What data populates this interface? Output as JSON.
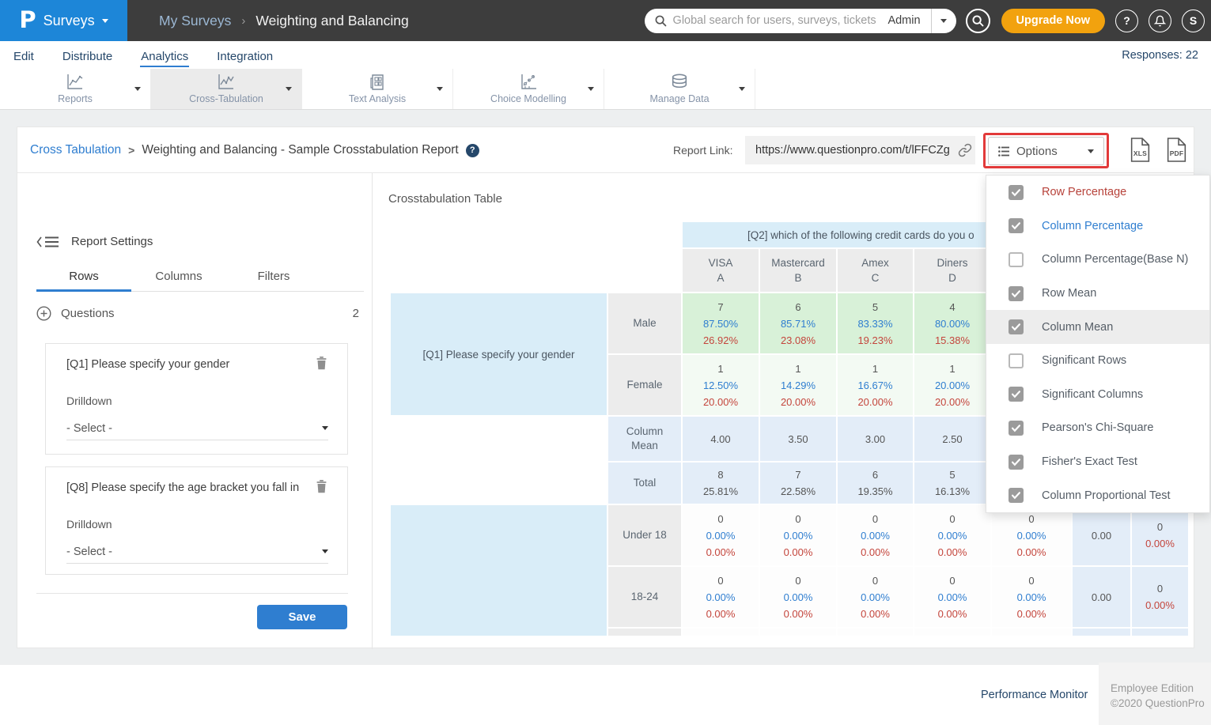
{
  "colors": {
    "topbar": "#3d3d3d",
    "logo_blue": "#1d86d8",
    "accent_blue": "#2f7ed0",
    "accent_orange": "#f2a20e",
    "annotation_red": "#e23a3a",
    "percent_blue": "#2f7ed0",
    "percent_red": "#c4453c",
    "cell_green": "#d8f1d8",
    "cell_blue": "#d9edf8",
    "cell_summary": "#e3edf8"
  },
  "topbar": {
    "logo_letter": "P",
    "product_menu": "Surveys",
    "breadcrumb": {
      "parent": "My Surveys",
      "separator": "›",
      "current": "Weighting and Balancing"
    },
    "search": {
      "placeholder": "Global search for users, surveys, tickets",
      "scope": "Admin"
    },
    "upgrade_label": "Upgrade Now",
    "help_glyph": "?",
    "avatar_letter": "S"
  },
  "nav": {
    "items": [
      "Edit",
      "Distribute",
      "Analytics",
      "Integration"
    ],
    "active_item": "Analytics",
    "responses": "Responses: 22"
  },
  "toolbar": {
    "items": [
      {
        "label": "Reports",
        "icon": "line-chart"
      },
      {
        "label": "Cross-Tabulation",
        "icon": "line-chart",
        "active": true
      },
      {
        "label": "Text Analysis",
        "icon": "document-grid"
      },
      {
        "label": "Choice Modelling",
        "icon": "dotted-chart"
      },
      {
        "label": "Manage Data",
        "icon": "database"
      }
    ]
  },
  "report_header": {
    "breadcrumb_link": "Cross Tabulation",
    "separator": ">",
    "title": "Weighting and Balancing - Sample Crosstabulation Report",
    "help_glyph": "?",
    "report_link_label": "Report Link:",
    "report_url": "https://www.questionpro.com/t/lFFCZg",
    "options_button": "Options",
    "xls_label": "XLS",
    "pdf_label": "PDF"
  },
  "settings": {
    "title": "Report Settings",
    "tabs": [
      "Rows",
      "Columns",
      "Filters"
    ],
    "active_tab": "Rows",
    "questions_label": "Questions",
    "questions_count": "2",
    "cards": [
      {
        "question": "[Q1] Please specify your gender",
        "drilldown": "Drilldown",
        "select": "- Select -"
      },
      {
        "question": "[Q8] Please specify the age bracket you fall in",
        "drilldown": "Drilldown",
        "select": "- Select -"
      }
    ],
    "save_label": "Save"
  },
  "crosstab": {
    "title": "Crosstabulation Table",
    "banner": "[Q2] which of the following credit cards do you o",
    "columns": [
      {
        "brand": "VISA",
        "code": "A"
      },
      {
        "brand": "Mastercard",
        "code": "B"
      },
      {
        "brand": "Amex",
        "code": "C"
      },
      {
        "brand": "Diners",
        "code": "D"
      }
    ],
    "gender_group": {
      "question": "[Q1] Please specify your gender",
      "rows": [
        {
          "label": "Male",
          "style": "green",
          "cells": [
            [
              "7",
              "87.50%",
              "26.92%"
            ],
            [
              "6",
              "85.71%",
              "23.08%"
            ],
            [
              "5",
              "83.33%",
              "19.23%"
            ],
            [
              "4",
              "80.00%",
              "15.38%"
            ]
          ]
        },
        {
          "label": "Female",
          "style": "palegreen",
          "cells": [
            [
              "1",
              "12.50%",
              "20.00%"
            ],
            [
              "1",
              "14.29%",
              "20.00%"
            ],
            [
              "1",
              "16.67%",
              "20.00%"
            ],
            [
              "1",
              "20.00%",
              "20.00%"
            ]
          ]
        }
      ]
    },
    "summary_rows": [
      {
        "label": "Column Mean",
        "cells": [
          "4.00",
          "3.50",
          "3.00",
          "2.50"
        ]
      },
      {
        "label": "Total",
        "cells": [
          [
            "8",
            "25.81%"
          ],
          [
            "7",
            "22.58%"
          ],
          [
            "6",
            "19.35%"
          ],
          [
            "5",
            "16.13%"
          ]
        ]
      }
    ],
    "age_group": {
      "question": "",
      "rows": [
        {
          "label": "Under 18",
          "cells": [
            [
              "0",
              "0.00%",
              "0.00%"
            ],
            [
              "0",
              "0.00%",
              "0.00%"
            ],
            [
              "0",
              "0.00%",
              "0.00%"
            ],
            [
              "0",
              "0.00%",
              "0.00%"
            ]
          ],
          "extra_cell": [
            "0",
            "0.00%",
            "0.00%"
          ],
          "row_mean": "0.00",
          "total": [
            "0",
            "0.00%"
          ]
        },
        {
          "label": "18-24",
          "cells": [
            [
              "0",
              "0.00%",
              "0.00%"
            ],
            [
              "0",
              "0.00%",
              "0.00%"
            ],
            [
              "0",
              "0.00%",
              "0.00%"
            ],
            [
              "0",
              "0.00%",
              "0.00%"
            ]
          ],
          "extra_cell": [
            "0",
            "0.00%",
            "0.00%"
          ],
          "row_mean": "0.00",
          "total": [
            "0",
            "0.00%"
          ]
        }
      ]
    }
  },
  "options_menu": {
    "items": [
      {
        "label": "Row Percentage",
        "checked": true,
        "color": "#b7423a"
      },
      {
        "label": "Column Percentage",
        "checked": true,
        "color": "#2f7ed0"
      },
      {
        "label": "Column Percentage(Base N)",
        "checked": false
      },
      {
        "label": "Row Mean",
        "checked": true
      },
      {
        "label": "Column Mean",
        "checked": true,
        "highlighted": true
      },
      {
        "label": "Significant Rows",
        "checked": false
      },
      {
        "label": "Significant Columns",
        "checked": true
      },
      {
        "label": "Pearson's Chi-Square",
        "checked": true
      },
      {
        "label": "Fisher's Exact Test",
        "checked": true
      },
      {
        "label": "Column Proportional Test",
        "checked": true
      }
    ]
  },
  "footer": {
    "link": "Performance Monitor",
    "edition": "Employee Edition",
    "copyright": "©2020 QuestionPro"
  }
}
